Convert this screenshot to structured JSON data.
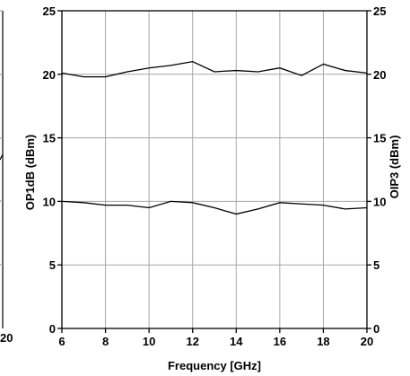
{
  "chart_data": {
    "type": "line",
    "title": "",
    "xlabel": "Frequency [GHz]",
    "ylabel_left": "OP1dB (dBm)",
    "ylabel_right": "OIP3 (dBm)",
    "xlim": [
      6,
      20
    ],
    "ylim": [
      0,
      25
    ],
    "xticks": [
      6,
      8,
      10,
      12,
      14,
      16,
      18,
      20
    ],
    "yticks": [
      0,
      5,
      10,
      15,
      20,
      25
    ],
    "left_partial_tick_label": "20",
    "grid": true,
    "legend": "none",
    "series": [
      {
        "color": "#000000",
        "x": [
          6,
          7,
          8,
          9,
          10,
          11,
          12,
          13,
          14,
          15,
          16,
          17,
          18,
          19,
          20
        ],
        "y": [
          20.1,
          19.8,
          19.8,
          20.2,
          20.5,
          20.7,
          21.0,
          20.2,
          20.3,
          20.2,
          20.5,
          19.9,
          20.8,
          20.3,
          20.1
        ]
      },
      {
        "color": "#000000",
        "x": [
          6,
          7,
          8,
          9,
          10,
          11,
          12,
          13,
          14,
          15,
          16,
          17,
          18,
          19,
          20
        ],
        "y": [
          10.0,
          9.9,
          9.7,
          9.7,
          9.5,
          10.0,
          9.9,
          9.5,
          9.0,
          9.4,
          9.9,
          9.8,
          9.7,
          9.4,
          9.5
        ]
      }
    ]
  }
}
